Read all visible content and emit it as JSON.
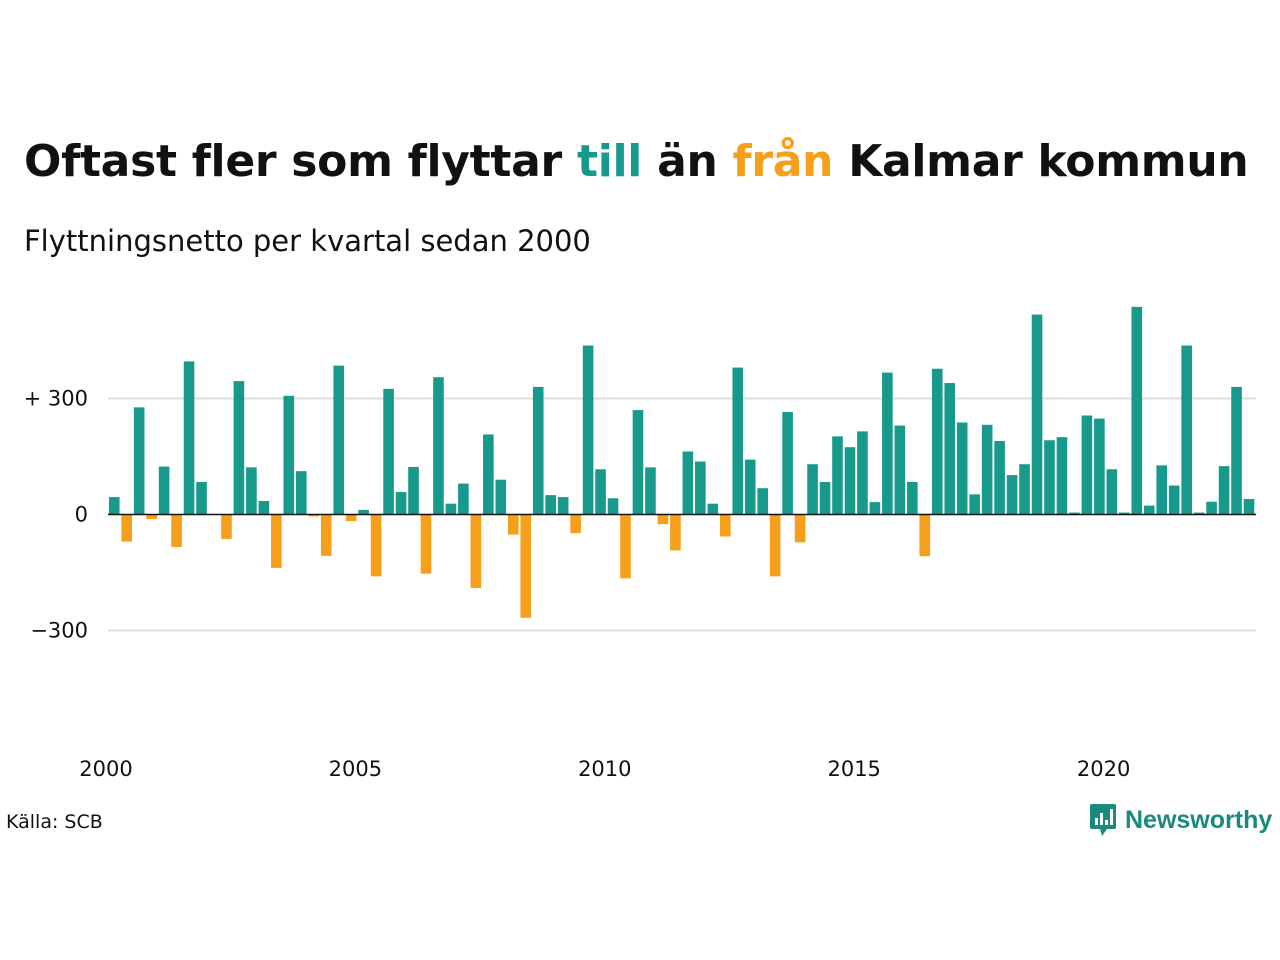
{
  "title": {
    "part1": "Oftast fler som flyttar ",
    "till": "till",
    "part2": " än ",
    "fran": "från",
    "part3": " Kalmar kommun"
  },
  "subtitle": "Flyttningsnetto per kvartal sedan 2000",
  "source": "Källa: SCB",
  "brand": {
    "name": "Newsworthy",
    "icon": "newsworthy-logo-icon"
  },
  "colors": {
    "positive": "#17998b",
    "negative": "#f59f1a",
    "grid": "#dddddd",
    "axis": "#111111",
    "brand": "#1a8a7c"
  },
  "chart_data": {
    "type": "bar",
    "title": "Oftast fler som flyttar till än från Kalmar kommun",
    "subtitle": "Flyttningsnetto per kvartal sedan 2000",
    "x_start_year": 2000,
    "periods_per_year": 4,
    "x_ticks": [
      "2000",
      "2005",
      "2010",
      "2015",
      "2020"
    ],
    "y_ticks": [
      {
        "value": 300,
        "label": "+ 300"
      },
      {
        "value": 0,
        "label": "0"
      },
      {
        "value": -300,
        "label": "−300"
      }
    ],
    "ylim": [
      -520,
      570
    ],
    "grid": true,
    "values": [
      45,
      -70,
      277,
      -12,
      124,
      -84,
      396,
      84,
      0,
      -63,
      345,
      122,
      35,
      -138,
      307,
      112,
      -5,
      -107,
      385,
      -17,
      12,
      -160,
      325,
      58,
      123,
      -153,
      355,
      28,
      80,
      -190,
      207,
      90,
      -52,
      -267,
      330,
      50,
      45,
      -48,
      437,
      117,
      42,
      -165,
      270,
      122,
      -25,
      -93,
      163,
      137,
      28,
      -57,
      380,
      142,
      68,
      -160,
      265,
      -72,
      130,
      84,
      202,
      174,
      215,
      32,
      367,
      230,
      84,
      -108,
      377,
      340,
      238,
      52,
      232,
      190,
      102,
      130,
      517,
      192,
      200,
      5,
      256,
      248,
      117,
      5,
      537,
      23,
      127,
      75,
      437,
      5,
      33,
      125,
      330,
      40
    ]
  }
}
